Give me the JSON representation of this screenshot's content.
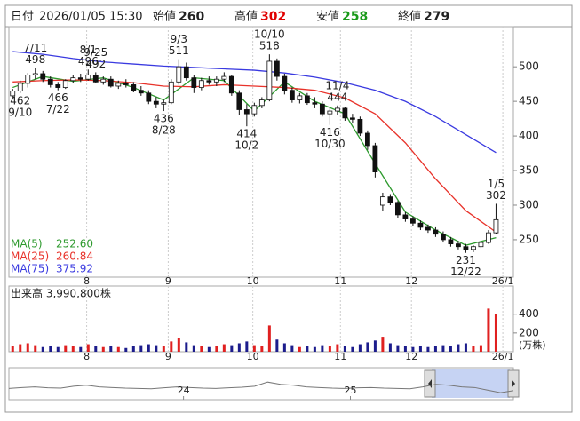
{
  "header": {
    "date_label": "日付",
    "datetime": "2026/01/05 15:30",
    "open_label": "始値",
    "open": 260,
    "high_label": "高値",
    "high": 302,
    "low_label": "安値",
    "low": 258,
    "close_label": "終値",
    "close": 279
  },
  "chart_data": [
    {
      "type": "candlestick",
      "candles": [
        [
          458,
          468,
          455,
          465
        ],
        [
          465,
          480,
          462,
          476
        ],
        [
          476,
          491,
          470,
          488
        ],
        [
          488,
          498,
          482,
          490
        ],
        [
          490,
          494,
          478,
          482
        ],
        [
          482,
          486,
          470,
          474
        ],
        [
          474,
          478,
          466,
          470
        ],
        [
          470,
          482,
          468,
          480
        ],
        [
          480,
          488,
          476,
          484
        ],
        [
          484,
          490,
          478,
          482
        ],
        [
          482,
          496,
          480,
          488
        ],
        [
          488,
          492,
          476,
          478
        ],
        [
          478,
          486,
          474,
          482
        ],
        [
          482,
          486,
          470,
          472
        ],
        [
          472,
          480,
          468,
          476
        ],
        [
          476,
          482,
          470,
          474
        ],
        [
          474,
          478,
          463,
          466
        ],
        [
          466,
          472,
          458,
          462
        ],
        [
          462,
          466,
          446,
          450
        ],
        [
          450,
          456,
          440,
          446
        ],
        [
          446,
          452,
          436,
          448
        ],
        [
          448,
          482,
          446,
          478
        ],
        [
          478,
          511,
          474,
          500
        ],
        [
          500,
          506,
          480,
          484
        ],
        [
          484,
          488,
          462,
          470
        ],
        [
          470,
          484,
          466,
          480
        ],
        [
          480,
          486,
          474,
          478
        ],
        [
          478,
          486,
          472,
          482
        ],
        [
          482,
          492,
          478,
          486
        ],
        [
          486,
          488,
          458,
          462
        ],
        [
          462,
          466,
          430,
          438
        ],
        [
          438,
          446,
          414,
          432
        ],
        [
          432,
          448,
          428,
          444
        ],
        [
          444,
          456,
          440,
          452
        ],
        [
          452,
          518,
          450,
          508
        ],
        [
          508,
          512,
          480,
          486
        ],
        [
          486,
          490,
          460,
          466
        ],
        [
          466,
          470,
          448,
          452
        ],
        [
          452,
          462,
          447,
          458
        ],
        [
          458,
          462,
          445,
          448
        ],
        [
          448,
          456,
          440,
          446
        ],
        [
          446,
          450,
          428,
          432
        ],
        [
          432,
          440,
          416,
          436
        ],
        [
          436,
          444,
          430,
          440
        ],
        [
          440,
          442,
          422,
          426
        ],
        [
          426,
          432,
          418,
          424
        ],
        [
          424,
          428,
          400,
          404
        ],
        [
          404,
          408,
          380,
          386
        ],
        [
          386,
          390,
          340,
          348
        ],
        [
          300,
          318,
          292,
          312
        ],
        [
          312,
          316,
          300,
          304
        ],
        [
          304,
          306,
          282,
          286
        ],
        [
          286,
          290,
          276,
          280
        ],
        [
          280,
          284,
          270,
          274
        ],
        [
          274,
          278,
          264,
          268
        ],
        [
          268,
          272,
          260,
          264
        ],
        [
          264,
          268,
          254,
          258
        ],
        [
          258,
          262,
          246,
          250
        ],
        [
          250,
          254,
          240,
          244
        ],
        [
          244,
          248,
          236,
          240
        ],
        [
          240,
          244,
          231,
          236
        ],
        [
          236,
          242,
          232,
          240
        ],
        [
          240,
          248,
          238,
          246
        ],
        [
          246,
          264,
          244,
          260
        ],
        [
          260,
          302,
          258,
          279
        ]
      ],
      "ylim": [
        196,
        558
      ],
      "yticks": [
        250,
        300,
        350,
        400,
        450,
        500
      ],
      "xlim": [
        -0.5,
        66.3
      ],
      "xticks": [
        {
          "value": 9.8,
          "label": "8"
        },
        {
          "value": 20.6,
          "label": "9"
        },
        {
          "value": 31.8,
          "label": "10"
        },
        {
          "value": 43.4,
          "label": "11"
        },
        {
          "value": 52.8,
          "label": "12"
        },
        {
          "value": 64.9,
          "label": "26/1"
        }
      ],
      "series": [
        {
          "name": "MA(5)",
          "color": "#2e9a2e",
          "latest": "252.60",
          "x": [
            0,
            4,
            8,
            12,
            16,
            20,
            24,
            28,
            32,
            36,
            40,
            44,
            48,
            52,
            56,
            60,
            64
          ],
          "values": [
            470,
            486,
            479,
            484,
            470,
            452,
            484,
            480,
            436,
            478,
            450,
            432,
            360,
            290,
            264,
            242,
            253
          ]
        },
        {
          "name": "MA(25)",
          "color": "#e8322a",
          "latest": "260.84",
          "x": [
            0,
            4,
            8,
            12,
            16,
            20,
            24,
            28,
            32,
            36,
            40,
            44,
            48,
            52,
            56,
            60,
            64
          ],
          "values": [
            478,
            480,
            481,
            480,
            477,
            472,
            471,
            474,
            472,
            470,
            466,
            455,
            432,
            390,
            338,
            292,
            261
          ]
        },
        {
          "name": "MA(75)",
          "color": "#3a3ae0",
          "latest": "375.92",
          "x": [
            0,
            4,
            8,
            12,
            16,
            20,
            24,
            28,
            32,
            36,
            40,
            44,
            48,
            52,
            56,
            60,
            64
          ],
          "values": [
            522,
            518,
            512,
            507,
            504,
            501,
            499,
            497,
            495,
            491,
            485,
            477,
            466,
            450,
            428,
            402,
            376
          ]
        }
      ],
      "annotations": [
        {
          "label": "7/11",
          "value": 498
        },
        {
          "label": "7/22",
          "value": 466
        },
        {
          "label": "8/1",
          "value": 496
        },
        {
          "label": "8/28",
          "value": 436
        },
        {
          "label": "9/3",
          "value": 511
        },
        {
          "label": "9/10",
          "value": 462
        },
        {
          "label": "9/25",
          "value": 492
        },
        {
          "label": "10/2",
          "value": 414
        },
        {
          "label": "10/10",
          "value": 518
        },
        {
          "label": "10/30",
          "value": 416
        },
        {
          "label": "11/4",
          "value": 444
        },
        {
          "label": "12/22",
          "value": 231
        },
        {
          "label": "1/5",
          "value": 302
        }
      ]
    },
    {
      "type": "bar",
      "title": "出来高 3,990,800株",
      "unit": "(万株)",
      "values": [
        60,
        80,
        90,
        70,
        50,
        60,
        50,
        70,
        60,
        50,
        80,
        60,
        50,
        60,
        50,
        40,
        60,
        70,
        80,
        70,
        60,
        110,
        150,
        100,
        70,
        60,
        50,
        60,
        80,
        70,
        90,
        110,
        70,
        60,
        280,
        130,
        90,
        70,
        50,
        60,
        50,
        70,
        60,
        80,
        60,
        50,
        80,
        100,
        120,
        160,
        90,
        70,
        60,
        50,
        60,
        50,
        60,
        70,
        60,
        80,
        90,
        60,
        70,
        460,
        399
      ],
      "ylim": [
        0,
        700
      ],
      "yticks": [
        200,
        400
      ],
      "xlim": [
        -0.5,
        66.3
      ],
      "xticks": [
        {
          "value": 9.8,
          "label": "8"
        },
        {
          "value": 20.6,
          "label": "9"
        },
        {
          "value": 31.8,
          "label": "10"
        },
        {
          "value": 43.4,
          "label": "11"
        },
        {
          "value": 52.8,
          "label": "12"
        },
        {
          "value": 64.9,
          "label": "26/1"
        }
      ]
    },
    {
      "type": "area",
      "values": [
        35,
        38,
        40,
        37,
        36,
        42,
        45,
        40,
        38,
        36,
        35,
        34,
        37,
        40,
        38,
        36,
        35,
        37,
        39,
        42,
        55,
        48,
        45,
        40,
        38,
        36,
        35,
        37,
        38,
        36,
        35,
        34,
        40,
        48,
        45,
        40,
        38,
        30,
        22,
        28
      ],
      "ylim": [
        0,
        100
      ],
      "xlim": [
        0,
        39
      ],
      "xticks": [
        {
          "value": 13.5,
          "label": "24"
        },
        {
          "value": 26.4,
          "label": "25"
        }
      ]
    }
  ]
}
